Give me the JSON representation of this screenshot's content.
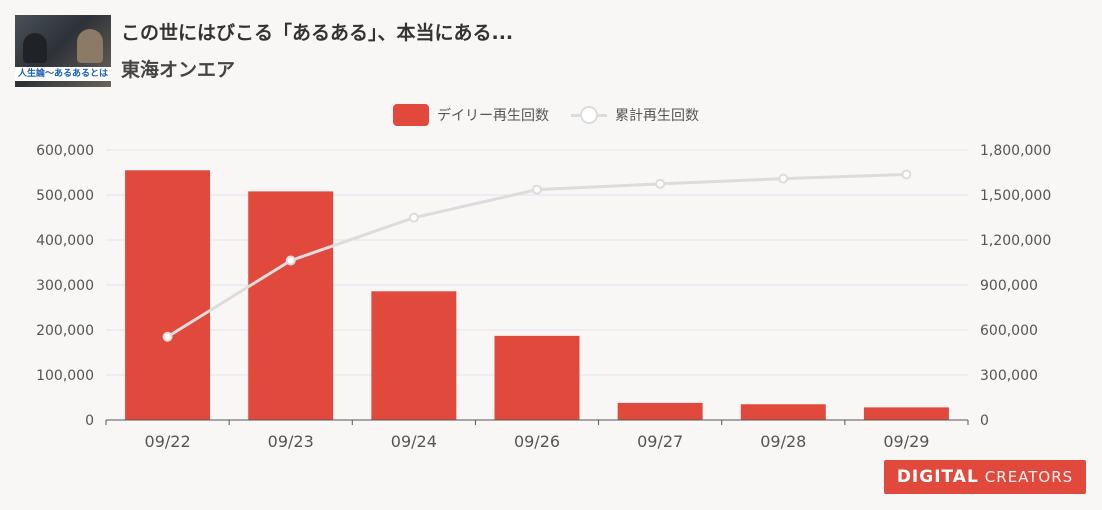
{
  "video": {
    "title": "この世にはびこる「あるある」、本当にある...",
    "channel": "東海オンエア",
    "thumbnail_caption": "人生論〜あるあるとは"
  },
  "brand": {
    "part1": "DIGITAL",
    "part2": "CREATORS"
  },
  "colors": {
    "bar": "#e0493c",
    "line": "#dcdcdc",
    "grid": "#dfe3ee",
    "axis_text": "#555555"
  },
  "chart_data": {
    "type": "bar",
    "categories": [
      "09/22",
      "09/23",
      "09/24",
      "09/26",
      "09/27",
      "09/28",
      "09/29"
    ],
    "series": [
      {
        "name": "デイリー再生回数",
        "type": "bar",
        "axis": "left",
        "values": [
          555000,
          508000,
          286000,
          187000,
          38000,
          35000,
          28000
        ]
      },
      {
        "name": "累計再生回数",
        "type": "line",
        "axis": "right",
        "values": [
          555000,
          1063000,
          1349000,
          1536000,
          1574000,
          1609000,
          1637000
        ]
      }
    ],
    "y_left": {
      "min": 0,
      "max": 600000,
      "ticks": [
        "0",
        "100,000",
        "200,000",
        "300,000",
        "400,000",
        "500,000",
        "600,000"
      ]
    },
    "y_right": {
      "min": 0,
      "max": 1800000,
      "ticks": [
        "0",
        "300,000",
        "600,000",
        "900,000",
        "1,200,000",
        "1,500,000",
        "1,800,000"
      ]
    },
    "grid": true,
    "legend_position": "top-center"
  }
}
